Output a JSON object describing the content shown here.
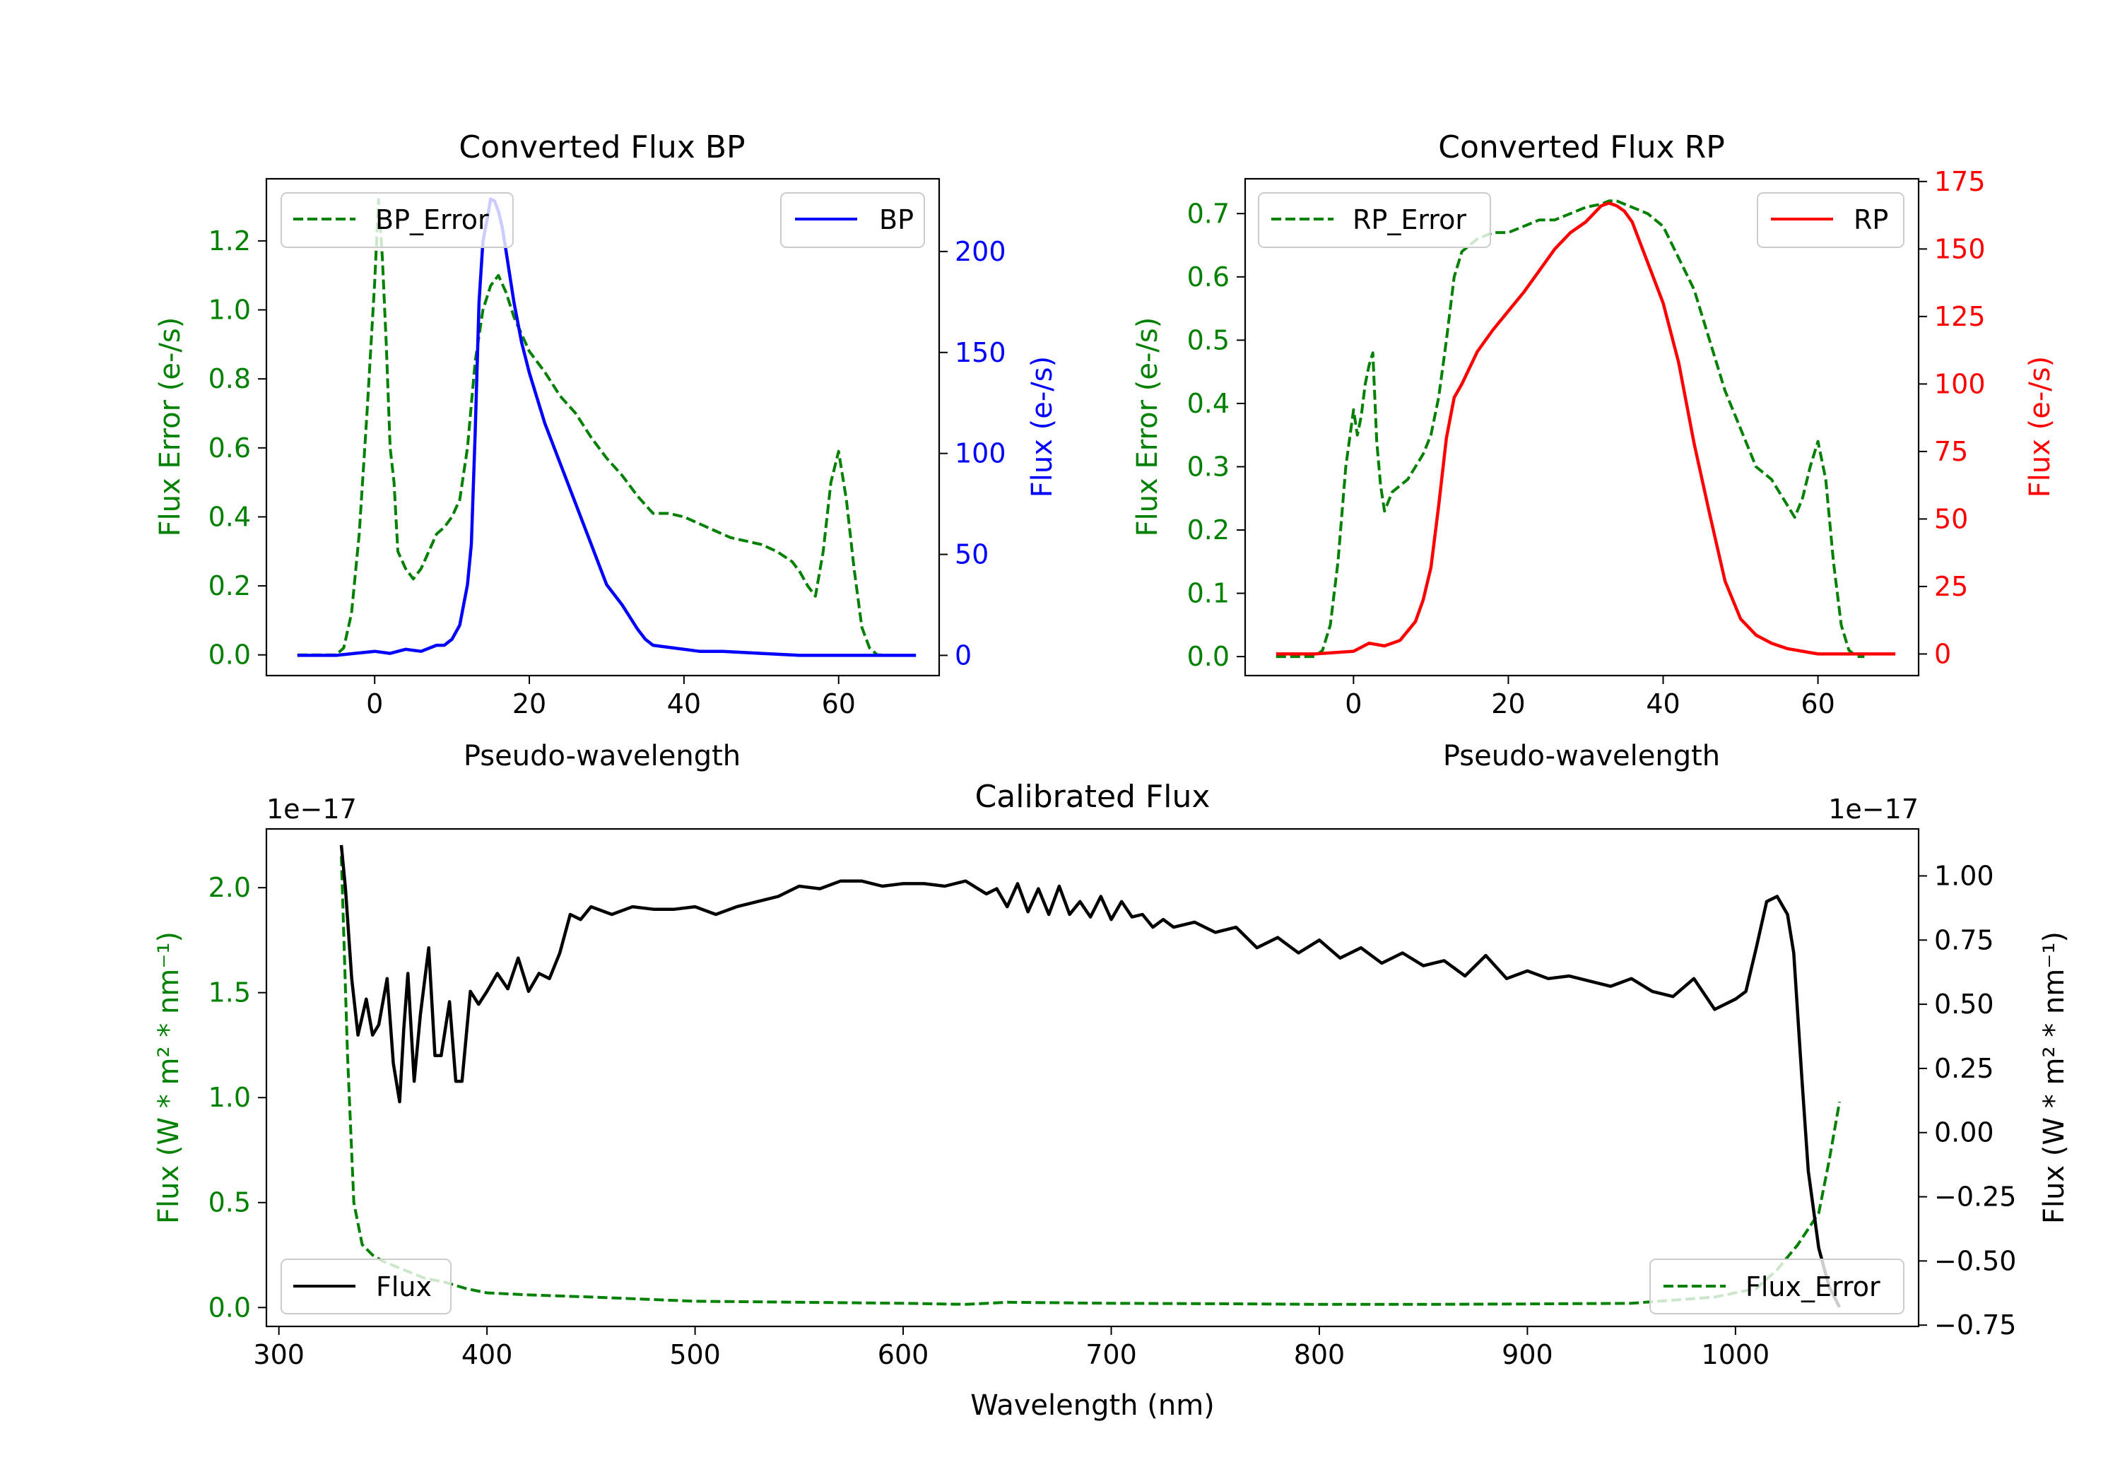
{
  "colors": {
    "green": "#008000",
    "blue": "#0000ff",
    "red": "#ff0000",
    "black": "#000000",
    "axis": "#000000"
  },
  "chart_data": [
    {
      "id": "bp",
      "type": "line",
      "title": "Converted Flux BP",
      "xlabel": "Pseudo-wavelength",
      "ylabel_left": "Flux Error (e-/s)",
      "ylabel_right": "Flux (e-/s)",
      "xlim": [
        -14,
        73
      ],
      "ylim_left": [
        -0.06,
        1.38
      ],
      "ylim_right": [
        -10,
        236
      ],
      "xticks": [
        0,
        20,
        40,
        60
      ],
      "xtick_labels": [
        "0",
        "20",
        "40",
        "60"
      ],
      "yticks_left": [
        0.0,
        0.2,
        0.4,
        0.6,
        0.8,
        1.0,
        1.2
      ],
      "ytick_labels_left": [
        "0.0",
        "0.2",
        "0.4",
        "0.6",
        "0.8",
        "1.0",
        "1.2"
      ],
      "yticks_right": [
        0,
        50,
        100,
        150,
        200
      ],
      "ytick_labels_right": [
        "0",
        "50",
        "100",
        "150",
        "200"
      ],
      "legend_left": "BP_Error",
      "legend_right": "BP",
      "error_color": "#008000",
      "flux_color": "#0000ff",
      "error_series": {
        "name": "BP_Error",
        "x": [
          -10,
          -5,
          -4,
          -3,
          -2,
          -1,
          0,
          0.5,
          1,
          1.5,
          2,
          2.5,
          3,
          4,
          5,
          6,
          7,
          8,
          9,
          10,
          11,
          12,
          13,
          14,
          15,
          16,
          17,
          18,
          19,
          20,
          22,
          24,
          26,
          28,
          30,
          32,
          34,
          36,
          38,
          40,
          42,
          44,
          46,
          48,
          50,
          52,
          54,
          55,
          56,
          57,
          58,
          59,
          60,
          61,
          62,
          63,
          64,
          65,
          66
        ],
        "values": [
          0,
          0,
          0.02,
          0.12,
          0.35,
          0.7,
          1.08,
          1.32,
          1.15,
          0.9,
          0.6,
          0.5,
          0.3,
          0.25,
          0.22,
          0.25,
          0.3,
          0.35,
          0.37,
          0.4,
          0.45,
          0.6,
          0.85,
          1.0,
          1.07,
          1.1,
          1.05,
          0.98,
          0.93,
          0.88,
          0.82,
          0.75,
          0.7,
          0.63,
          0.57,
          0.52,
          0.46,
          0.41,
          0.41,
          0.4,
          0.38,
          0.36,
          0.34,
          0.33,
          0.32,
          0.3,
          0.27,
          0.24,
          0.2,
          0.17,
          0.3,
          0.5,
          0.59,
          0.45,
          0.25,
          0.08,
          0.02,
          0.0,
          0.0
        ]
      },
      "flux_series": {
        "name": "BP",
        "x": [
          -10,
          -5,
          0,
          2,
          4,
          6,
          8,
          9,
          10,
          11,
          12,
          12.5,
          13,
          13.5,
          14,
          14.5,
          15,
          15.5,
          16,
          16.5,
          17,
          18,
          19,
          20,
          22,
          24,
          26,
          28,
          29,
          30,
          32,
          34,
          35,
          36,
          38,
          40,
          42,
          45,
          50,
          55,
          60,
          65,
          70
        ],
        "values": [
          0,
          0,
          2,
          1,
          3,
          2,
          5,
          5,
          8,
          15,
          35,
          55,
          110,
          175,
          205,
          215,
          226,
          225,
          220,
          212,
          200,
          175,
          155,
          140,
          115,
          95,
          75,
          55,
          45,
          35,
          25,
          13,
          8,
          5,
          4,
          3,
          2,
          2,
          1,
          0,
          0,
          0,
          0
        ]
      }
    },
    {
      "id": "rp",
      "type": "line",
      "title": "Converted Flux RP",
      "xlabel": "Pseudo-wavelength",
      "ylabel_left": "Flux Error (e-/s)",
      "ylabel_right": "Flux (e-/s)",
      "xlim": [
        -14,
        73
      ],
      "ylim_left": [
        -0.03,
        0.755
      ],
      "ylim_right": [
        -8,
        176
      ],
      "xticks": [
        0,
        20,
        40,
        60
      ],
      "xtick_labels": [
        "0",
        "20",
        "40",
        "60"
      ],
      "yticks_left": [
        0.0,
        0.1,
        0.2,
        0.3,
        0.4,
        0.5,
        0.6,
        0.7
      ],
      "ytick_labels_left": [
        "0.0",
        "0.1",
        "0.2",
        "0.3",
        "0.4",
        "0.5",
        "0.6",
        "0.7"
      ],
      "yticks_right": [
        0,
        25,
        50,
        75,
        100,
        125,
        150,
        175
      ],
      "ytick_labels_right": [
        "0",
        "25",
        "50",
        "75",
        "100",
        "125",
        "150",
        "175"
      ],
      "legend_left": "RP_Error",
      "legend_right": "RP",
      "error_color": "#008000",
      "flux_color": "#ff0000",
      "error_series": {
        "name": "RP_Error",
        "x": [
          -10,
          -5,
          -4,
          -3,
          -2,
          -1,
          0,
          0.5,
          1,
          1.5,
          2,
          2.5,
          3,
          3.5,
          4,
          5,
          6,
          7,
          8,
          9,
          10,
          11,
          12,
          13,
          14,
          16,
          18,
          20,
          22,
          24,
          26,
          28,
          30,
          32,
          33,
          34,
          36,
          38,
          40,
          42,
          44,
          46,
          48,
          50,
          52,
          54,
          55,
          56,
          57,
          58,
          59,
          60,
          61,
          62,
          63,
          64,
          65,
          66
        ],
        "values": [
          0,
          0,
          0.01,
          0.05,
          0.15,
          0.3,
          0.39,
          0.35,
          0.38,
          0.43,
          0.46,
          0.48,
          0.34,
          0.27,
          0.23,
          0.26,
          0.27,
          0.28,
          0.3,
          0.32,
          0.35,
          0.41,
          0.5,
          0.6,
          0.64,
          0.66,
          0.67,
          0.67,
          0.68,
          0.69,
          0.69,
          0.7,
          0.71,
          0.715,
          0.72,
          0.72,
          0.71,
          0.7,
          0.68,
          0.63,
          0.58,
          0.5,
          0.42,
          0.36,
          0.3,
          0.28,
          0.26,
          0.24,
          0.22,
          0.25,
          0.3,
          0.34,
          0.28,
          0.15,
          0.05,
          0.01,
          0,
          0
        ]
      },
      "flux_series": {
        "name": "RP",
        "x": [
          -10,
          -5,
          0,
          2,
          4,
          6,
          8,
          9,
          10,
          11,
          12,
          13,
          14,
          16,
          18,
          20,
          22,
          24,
          26,
          28,
          30,
          31,
          32,
          33,
          34,
          35,
          36,
          38,
          40,
          42,
          44,
          46,
          48,
          50,
          52,
          54,
          56,
          58,
          60,
          65,
          70
        ],
        "values": [
          0,
          0,
          1,
          4,
          3,
          5,
          12,
          20,
          32,
          55,
          80,
          95,
          100,
          112,
          120,
          127,
          134,
          142,
          150,
          156,
          160,
          163,
          166,
          167,
          166,
          164,
          160,
          145,
          130,
          108,
          78,
          52,
          27,
          13,
          7,
          4,
          2,
          1,
          0,
          0,
          0
        ]
      }
    },
    {
      "id": "calibrated",
      "type": "line",
      "title": "Calibrated Flux",
      "xlabel": "Wavelength (nm)",
      "ylabel_left": "Flux (W * m² * nm⁻¹)",
      "ylabel_right": "Flux (W * m² * nm⁻¹)",
      "offset_left": "1e−17",
      "offset_right": "1e−17",
      "xlim": [
        294,
        1088
      ],
      "ylim_left": [
        -0.09,
        2.28
      ],
      "ylim_right": [
        -0.755,
        1.183
      ],
      "xticks": [
        300,
        400,
        500,
        600,
        700,
        800,
        900,
        1000
      ],
      "xtick_labels": [
        "300",
        "400",
        "500",
        "600",
        "700",
        "800",
        "900",
        "1000"
      ],
      "yticks_left": [
        0.0,
        0.5,
        1.0,
        1.5,
        2.0
      ],
      "ytick_labels_left": [
        "0.0",
        "0.5",
        "1.0",
        "1.5",
        "2.0"
      ],
      "yticks_right": [
        -0.75,
        -0.5,
        -0.25,
        0.0,
        0.25,
        0.5,
        0.75,
        1.0
      ],
      "ytick_labels_right": [
        "−0.75",
        "−0.50",
        "−0.25",
        "0.00",
        "0.25",
        "0.50",
        "0.75",
        "1.00"
      ],
      "legend_left": "Flux",
      "legend_right": "Flux_Error",
      "error_color": "#008000",
      "flux_color": "#000000",
      "flux_series": {
        "name": "Flux",
        "x": [
          330,
          332,
          335,
          338,
          342,
          345,
          348,
          352,
          355,
          358,
          360,
          362,
          365,
          368,
          372,
          375,
          378,
          382,
          385,
          388,
          392,
          396,
          400,
          405,
          410,
          415,
          420,
          425,
          430,
          435,
          440,
          445,
          450,
          460,
          470,
          480,
          490,
          500,
          510,
          520,
          530,
          540,
          550,
          560,
          570,
          580,
          590,
          600,
          610,
          620,
          630,
          640,
          645,
          650,
          655,
          660,
          665,
          670,
          675,
          680,
          685,
          690,
          695,
          700,
          705,
          710,
          715,
          720,
          725,
          730,
          740,
          750,
          760,
          770,
          780,
          790,
          800,
          810,
          820,
          830,
          840,
          850,
          860,
          870,
          880,
          890,
          900,
          910,
          920,
          930,
          940,
          950,
          960,
          970,
          980,
          990,
          1000,
          1005,
          1010,
          1015,
          1020,
          1025,
          1028,
          1032,
          1035,
          1040,
          1045,
          1050
        ],
        "values": [
          1.12,
          0.95,
          0.6,
          0.38,
          0.52,
          0.38,
          0.42,
          0.6,
          0.27,
          0.12,
          0.4,
          0.62,
          0.2,
          0.46,
          0.72,
          0.3,
          0.3,
          0.51,
          0.2,
          0.2,
          0.55,
          0.5,
          0.55,
          0.62,
          0.56,
          0.68,
          0.55,
          0.62,
          0.6,
          0.7,
          0.85,
          0.83,
          0.88,
          0.85,
          0.88,
          0.87,
          0.87,
          0.88,
          0.85,
          0.88,
          0.9,
          0.92,
          0.96,
          0.95,
          0.98,
          0.98,
          0.96,
          0.97,
          0.97,
          0.96,
          0.98,
          0.93,
          0.95,
          0.88,
          0.97,
          0.86,
          0.95,
          0.85,
          0.96,
          0.85,
          0.9,
          0.84,
          0.92,
          0.83,
          0.9,
          0.84,
          0.85,
          0.8,
          0.83,
          0.8,
          0.82,
          0.78,
          0.8,
          0.72,
          0.76,
          0.7,
          0.75,
          0.68,
          0.72,
          0.66,
          0.7,
          0.65,
          0.67,
          0.61,
          0.69,
          0.6,
          0.63,
          0.6,
          0.61,
          0.59,
          0.57,
          0.6,
          0.55,
          0.53,
          0.6,
          0.48,
          0.52,
          0.55,
          0.72,
          0.9,
          0.92,
          0.85,
          0.7,
          0.2,
          -0.15,
          -0.45,
          -0.6,
          -0.68
        ]
      },
      "error_series": {
        "name": "Flux_Error",
        "x": [
          330,
          333,
          336,
          340,
          345,
          350,
          360,
          370,
          380,
          390,
          400,
          420,
          450,
          500,
          550,
          600,
          630,
          650,
          700,
          750,
          800,
          850,
          900,
          950,
          990,
          1010,
          1020,
          1030,
          1040,
          1045,
          1050
        ],
        "values": [
          2.15,
          1.2,
          0.5,
          0.3,
          0.25,
          0.22,
          0.18,
          0.14,
          0.12,
          0.09,
          0.07,
          0.06,
          0.05,
          0.03,
          0.025,
          0.02,
          0.015,
          0.025,
          0.02,
          0.018,
          0.015,
          0.015,
          0.017,
          0.02,
          0.05,
          0.09,
          0.18,
          0.3,
          0.45,
          0.7,
          0.98
        ]
      }
    }
  ]
}
